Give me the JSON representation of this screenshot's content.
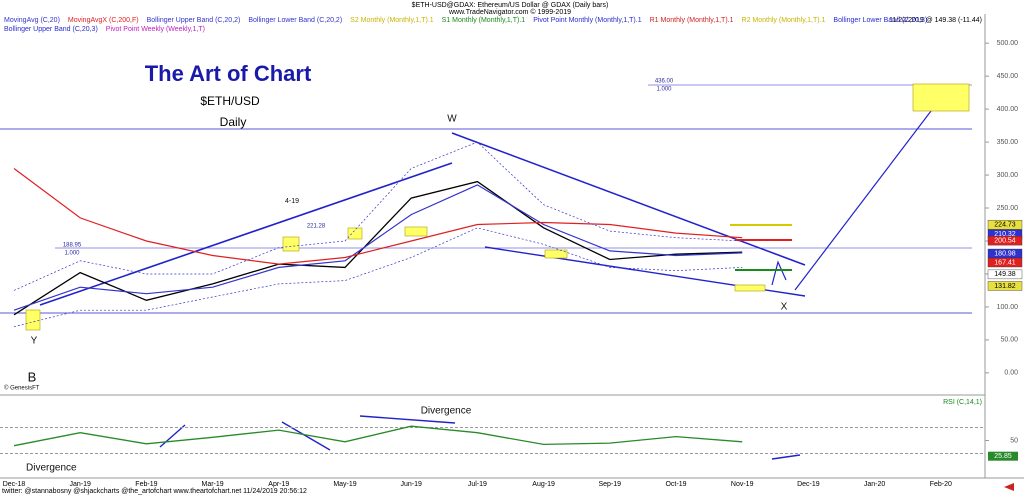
{
  "header": {
    "title": "$ETH-USD@GDAX: Ethereum/US Dollar @ GDAX  (Daily bars)",
    "source": "www.TradeNavigator.com © 1999-2019",
    "date_info": "11/22/2019 @ 149.38 (-11.44)"
  },
  "other_indicators": [
    {
      "text": "S2 Monthly (Monthly,1,T).1",
      "color": "#c8b400"
    },
    {
      "text": "S1 Monthly (Monthly,1,T).1",
      "color": "#1a8a1a"
    },
    {
      "text": "Pivot Point Monthly (Monthly,1,T).1",
      "color": "#2a2ad0"
    },
    {
      "text": "R1 Monthly (Monthly,1,T).1",
      "color": "#d02020"
    },
    {
      "text": "R2 Monthly (Monthly,1,T).1",
      "color": "#c8b400"
    },
    {
      "text": "Bollinger Lower Band (C,20,3)",
      "color": "#2a2ad0"
    },
    {
      "text": "Bollinger Upper Band (C,20,3)",
      "color": "#2a2ad0"
    },
    {
      "text": "Pivot Point Weekly (Weekly,1,T)",
      "color": "#c020c0"
    }
  ],
  "annotations": [
    "W",
    "X",
    "Y",
    "B",
    "4-19",
    "221.28",
    "188.95",
    "1.000",
    "436.00",
    "1.000",
    "Divergence",
    "Divergence",
    "© GenesisFT"
  ],
  "footer": "twitter: @stannabosny @shjackcharts @the_artofchart       www.theartofchart.net       11/24/2019 20:56:12",
  "chart_data": [
    {
      "type": "line",
      "title": "The Art of Chart",
      "subtitle": "$ETH/USD",
      "timeframe": "Daily",
      "categories": [
        "Dec-18",
        "Jan-19",
        "Feb-19",
        "Mar-19",
        "Apr-19",
        "May-19",
        "Jun-19",
        "Jul-19",
        "Aug-19",
        "Sep-19",
        "Oct-19",
        "Nov-19",
        "Dec-19",
        "Jan-20",
        "Feb-20"
      ],
      "series": [
        {
          "color": "#000000",
          "values": [
            88,
            152,
            110,
            135,
            165,
            160,
            265,
            290,
            220,
            172,
            180,
            183,
            null,
            null,
            null
          ]
        },
        {
          "name": "MovingAvg (C,20)",
          "color": "#3333cc",
          "values": [
            95,
            130,
            120,
            130,
            160,
            170,
            240,
            285,
            225,
            185,
            178,
            182,
            null,
            null,
            null
          ]
        },
        {
          "name": "MovingAvgX (C,200,F)",
          "color": "#e02020",
          "values": [
            310,
            235,
            200,
            178,
            165,
            175,
            200,
            225,
            228,
            225,
            212,
            205,
            null,
            null,
            null
          ]
        },
        {
          "name": "Bollinger Upper Band (C,20,2)",
          "color": "#3333cc",
          "values": [
            125,
            170,
            150,
            150,
            190,
            200,
            310,
            350,
            255,
            215,
            205,
            200,
            null,
            null,
            null
          ]
        },
        {
          "name": "Bollinger Lower Band (C,20,2)",
          "color": "#3333cc",
          "values": [
            70,
            95,
            95,
            115,
            135,
            140,
            175,
            220,
            195,
            160,
            155,
            160,
            null,
            null,
            null
          ]
        }
      ],
      "ylim": [
        -29,
        523
      ],
      "yticks": [
        {
          "value": 0,
          "label": "0.00"
        },
        {
          "value": 50,
          "label": "50.00"
        },
        {
          "value": 100,
          "label": "100.00"
        },
        {
          "value": 150,
          "label": "150.00"
        },
        {
          "value": 200,
          "label": "200.00"
        },
        {
          "value": 250,
          "label": "250.00"
        },
        {
          "value": 300,
          "label": "300.00"
        },
        {
          "value": 350,
          "label": "350.00"
        },
        {
          "value": 400,
          "label": "400.00"
        },
        {
          "value": 450,
          "label": "450.00"
        },
        {
          "value": 500,
          "label": "500.00"
        }
      ],
      "price_flags": [
        {
          "value": 224.73,
          "color": "#e8e040"
        },
        {
          "value": 210.32,
          "color": "#3030d0"
        },
        {
          "value": 200.54,
          "color": "#e02020"
        },
        {
          "value": 180.98,
          "color": "#3030d0"
        },
        {
          "value": 167.41,
          "color": "#e02020"
        },
        {
          "value": 149.38,
          "color": "#ffffff"
        },
        {
          "value": 131.82,
          "color": "#e8e040"
        }
      ]
    },
    {
      "type": "line",
      "title": "RSI (C,14,1)",
      "series": [
        {
          "color": "#2a8a2a",
          "values": [
            42,
            62,
            45,
            55,
            66,
            48,
            72,
            62,
            44,
            46,
            56,
            48,
            null,
            null,
            null
          ]
        }
      ],
      "ylim": [
        0,
        100
      ],
      "yticks": [
        50
      ],
      "levels": [
        30,
        70
      ],
      "last_value": 25.85
    }
  ]
}
